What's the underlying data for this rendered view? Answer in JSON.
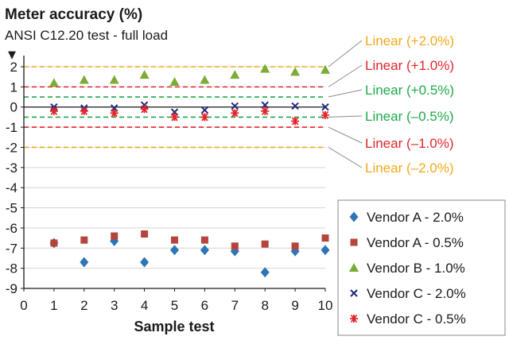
{
  "chart_data": {
    "type": "scatter",
    "title": "Meter accuracy (%)",
    "subtitle": "ANSI C12.20 test - full load",
    "xlabel": "Sample test",
    "ylabel": "",
    "xlim": [
      0,
      10
    ],
    "ylim": [
      -9,
      2
    ],
    "x_ticks": [
      0,
      1,
      2,
      3,
      4,
      5,
      6,
      7,
      8,
      9,
      10
    ],
    "y_ticks": [
      2,
      1,
      0,
      -1,
      -2,
      -3,
      -4,
      -5,
      -6,
      -7,
      -8,
      -9
    ],
    "y_axis_arrow": "▼",
    "grid": "horizontal",
    "legend_position": "bottom-right",
    "series": [
      {
        "name": "Vendor A - 2.0%",
        "marker": "diamond",
        "color": "#2e75b6",
        "x": [
          1,
          2,
          3,
          4,
          5,
          6,
          7,
          8,
          9,
          10
        ],
        "y": [
          -6.75,
          -7.7,
          -6.65,
          -7.7,
          -7.1,
          -7.1,
          -7.15,
          -8.2,
          -7.15,
          -7.1
        ]
      },
      {
        "name": "Vendor A - 0.5%",
        "marker": "square",
        "color": "#b5443d",
        "x": [
          1,
          2,
          3,
          4,
          5,
          6,
          7,
          8,
          9,
          10
        ],
        "y": [
          -6.75,
          -6.6,
          -6.4,
          -6.3,
          -6.6,
          -6.6,
          -6.9,
          -6.8,
          -6.9,
          -6.5
        ]
      },
      {
        "name": "Vendor B - 1.0%",
        "marker": "triangle",
        "color": "#7cab37",
        "x": [
          1,
          2,
          3,
          4,
          5,
          6,
          7,
          8,
          9,
          10
        ],
        "y": [
          1.2,
          1.35,
          1.35,
          1.6,
          1.25,
          1.35,
          1.6,
          1.9,
          1.75,
          1.85
        ]
      },
      {
        "name": "Vendor C - 2.0%",
        "marker": "x",
        "color": "#1f2a7a",
        "x": [
          1,
          2,
          3,
          4,
          5,
          6,
          7,
          8,
          9,
          10
        ],
        "y": [
          0.0,
          -0.05,
          -0.05,
          0.1,
          -0.25,
          -0.15,
          0.05,
          0.1,
          0.05,
          0.0
        ]
      },
      {
        "name": "Vendor C - 0.5%",
        "marker": "asterisk",
        "color": "#e2242c",
        "x": [
          1,
          2,
          3,
          4,
          5,
          6,
          7,
          8,
          9,
          10
        ],
        "y": [
          -0.2,
          -0.2,
          -0.3,
          -0.1,
          -0.5,
          -0.5,
          -0.3,
          -0.2,
          -0.7,
          -0.4
        ]
      }
    ],
    "reference_lines": [
      {
        "label": "Linear (+2.0%)",
        "y": 2.0,
        "color": "#f2a91b"
      },
      {
        "label": "Linear (+1.0%)",
        "y": 1.0,
        "color": "#e2242c"
      },
      {
        "label": "Linear (+0.5%)",
        "y": 0.5,
        "color": "#1faa4a"
      },
      {
        "label": "Linear (–0.5%)",
        "y": -0.5,
        "color": "#1faa4a"
      },
      {
        "label": "Linear (–1.0%)",
        "y": -1.0,
        "color": "#e2242c"
      },
      {
        "label": "Linear (–2.0%)",
        "y": -2.0,
        "color": "#f2a91b"
      }
    ]
  }
}
